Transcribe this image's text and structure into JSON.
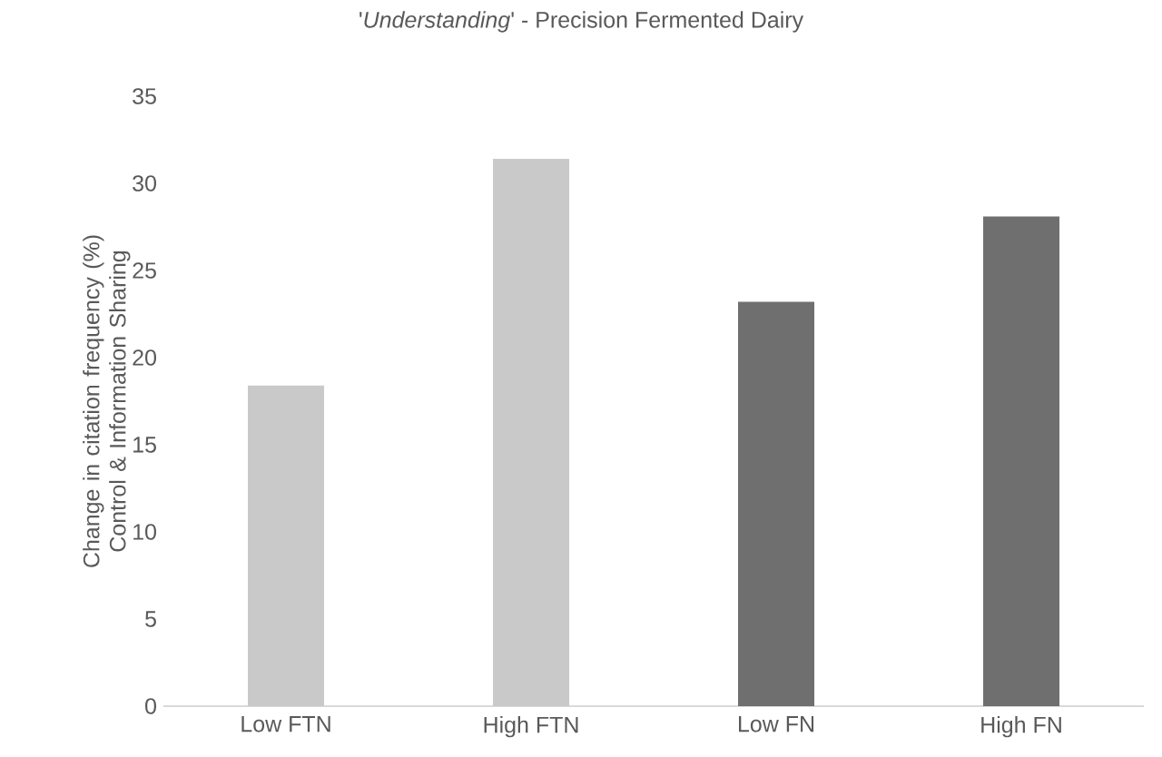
{
  "chart_data": {
    "type": "bar",
    "title": "'*Understanding*' - Precision Fermented Dairy",
    "ylabel": "Change in citation frequency (%) Control & Information Sharing",
    "categories": [
      "Low FTN",
      "High FTN",
      "Low FN",
      "High FN"
    ],
    "values": [
      18.4,
      31.4,
      23.2,
      28.1
    ],
    "colors": [
      "#c9c9c9",
      "#c9c9c9",
      "#6f6f6f",
      "#6f6f6f"
    ],
    "ylim": [
      0,
      35
    ],
    "yticks": [
      0,
      5,
      10,
      15,
      20,
      25,
      30,
      35
    ]
  }
}
